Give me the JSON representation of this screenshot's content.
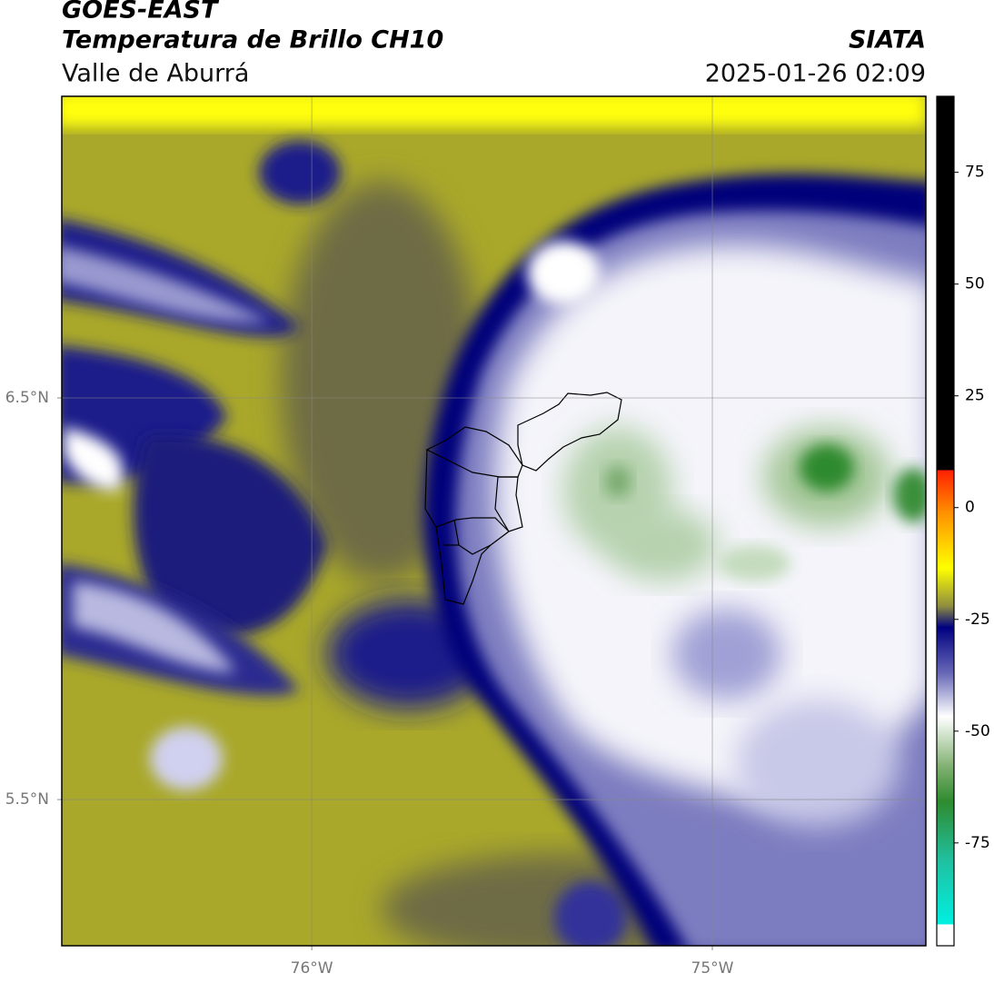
{
  "header": {
    "satellite": "GOES-EAST",
    "product": "Temperatura de Brillo CH10",
    "region": "Valle de Aburrá",
    "agency": "SIATA",
    "datetime": "2025-01-26 02:09"
  },
  "map": {
    "xlim": [
      -76.624,
      -74.467
    ],
    "ylim": [
      5.136,
      7.251
    ],
    "xticks": [
      {
        "value": -76,
        "label": "76°W"
      },
      {
        "value": -75,
        "label": "75°W"
      }
    ],
    "yticks": [
      {
        "value": 6.5,
        "label": "6.5°N"
      },
      {
        "value": 5.5,
        "label": "5.5°N"
      }
    ],
    "grid": true
  },
  "colorbar": {
    "lim": [
      -98,
      92
    ],
    "ticks": [
      -75,
      -50,
      -25,
      0,
      25,
      50,
      75
    ]
  }
}
